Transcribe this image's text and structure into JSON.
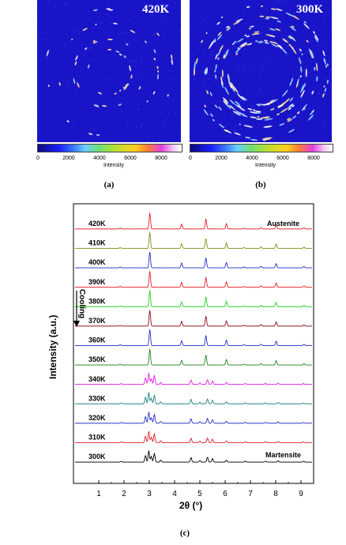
{
  "panels": {
    "a": {
      "temperature": "420K",
      "label": "(a)"
    },
    "b": {
      "temperature": "300K",
      "label": "(b)"
    },
    "c": {
      "label": "(c)"
    }
  },
  "colorbar": {
    "ticks": [
      "0",
      "2000",
      "4000",
      "6000",
      "8000"
    ],
    "label": "Intensity"
  },
  "annotations": {
    "cooling": "Cooling",
    "austenite": "Austenite",
    "martensite": "Martensite"
  },
  "chart_data": {
    "type": "line",
    "xlabel": "2θ (°)",
    "ylabel": "Intensity (a.u.)",
    "xlim": [
      0,
      9.5
    ],
    "xticks": [
      1,
      2,
      3,
      4,
      5,
      6,
      7,
      8,
      9
    ],
    "series": [
      {
        "name": "420K",
        "color": "#e0202a",
        "phase": "austenite"
      },
      {
        "name": "410K",
        "color": "#8a8a1a",
        "phase": "austenite"
      },
      {
        "name": "400K",
        "color": "#2030c8",
        "phase": "austenite"
      },
      {
        "name": "390K",
        "color": "#e0202a",
        "phase": "austenite"
      },
      {
        "name": "380K",
        "color": "#20d020",
        "phase": "austenite"
      },
      {
        "name": "370K",
        "color": "#8a1010",
        "phase": "austenite"
      },
      {
        "name": "360K",
        "color": "#2030c8",
        "phase": "austenite"
      },
      {
        "name": "350K",
        "color": "#208020",
        "phase": "austenite"
      },
      {
        "name": "340K",
        "color": "#e020e0",
        "phase": "martensite"
      },
      {
        "name": "330K",
        "color": "#208080",
        "phase": "martensite"
      },
      {
        "name": "320K",
        "color": "#2030c8",
        "phase": "martensite"
      },
      {
        "name": "310K",
        "color": "#e0202a",
        "phase": "martensite"
      },
      {
        "name": "300K",
        "color": "#000000",
        "phase": "martensite"
      }
    ],
    "austenite_peaks": [
      {
        "x": 1.85,
        "h": 0.05
      },
      {
        "x": 3.02,
        "h": 1.0
      },
      {
        "x": 4.28,
        "h": 0.3
      },
      {
        "x": 5.24,
        "h": 0.62
      },
      {
        "x": 6.05,
        "h": 0.34
      },
      {
        "x": 6.75,
        "h": 0.05
      },
      {
        "x": 7.42,
        "h": 0.09
      },
      {
        "x": 8.02,
        "h": 0.27
      },
      {
        "x": 9.12,
        "h": 0.08
      }
    ],
    "martensite_peaks": [
      {
        "x": 1.9,
        "h": 0.05
      },
      {
        "x": 2.85,
        "h": 0.42
      },
      {
        "x": 2.98,
        "h": 0.7
      },
      {
        "x": 3.08,
        "h": 0.35
      },
      {
        "x": 3.2,
        "h": 0.55
      },
      {
        "x": 3.45,
        "h": 0.12
      },
      {
        "x": 4.65,
        "h": 0.28
      },
      {
        "x": 5.0,
        "h": 0.1
      },
      {
        "x": 5.3,
        "h": 0.3
      },
      {
        "x": 5.5,
        "h": 0.22
      },
      {
        "x": 6.05,
        "h": 0.12
      },
      {
        "x": 6.8,
        "h": 0.06
      },
      {
        "x": 7.6,
        "h": 0.06
      },
      {
        "x": 8.1,
        "h": 0.08
      },
      {
        "x": 9.1,
        "h": 0.05
      }
    ]
  }
}
